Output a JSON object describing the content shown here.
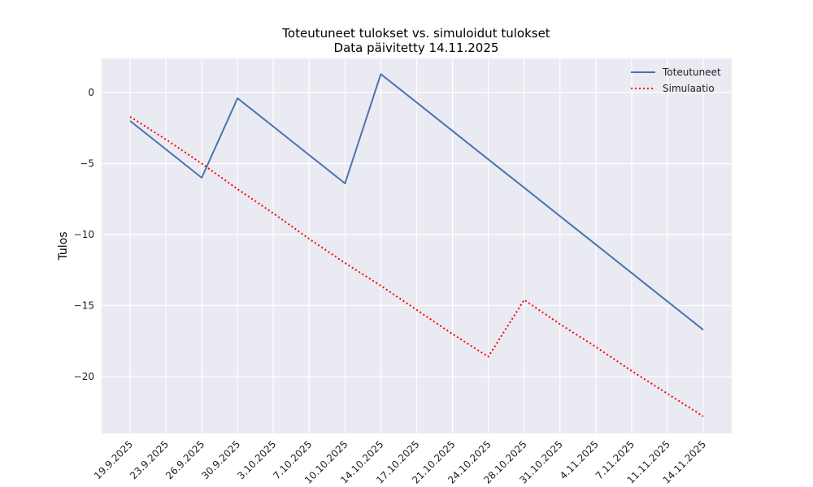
{
  "chart_data": {
    "type": "line",
    "title": "Toteutuneet tulokset vs. simuloidut tulokset",
    "subtitle": "Data päivitetty 14.11.2025",
    "xlabel": "",
    "ylabel": "Tulos",
    "categories": [
      "19.9.2025",
      "23.9.2025",
      "26.9.2025",
      "30.9.2025",
      "3.10.2025",
      "7.10.2025",
      "10.10.2025",
      "14.10.2025",
      "17.10.2025",
      "21.10.2025",
      "24.10.2025",
      "28.10.2025",
      "31.10.2025",
      "4.11.2025",
      "7.11.2025",
      "11.11.2025",
      "14.11.2025"
    ],
    "ylim": [
      -24,
      2.4
    ],
    "yticks": [
      0,
      -5,
      -10,
      -15,
      -20
    ],
    "grid": true,
    "legend_position": "top-right",
    "series": [
      {
        "name": "Toteutuneet",
        "color": "#4c72b0",
        "style": "solid",
        "values": [
          -2.0,
          -4.0,
          -6.0,
          -0.4,
          -2.4,
          -4.4,
          -6.4,
          1.3,
          -0.7,
          -2.7,
          -4.7,
          -6.7,
          -8.7,
          -10.7,
          -12.7,
          -14.7,
          -16.7
        ]
      },
      {
        "name": "Simulaatio",
        "color": "#ff0000",
        "style": "dotted",
        "values": [
          -1.7,
          -3.3,
          -5.0,
          -6.8,
          -8.5,
          -10.3,
          -12.0,
          -13.6,
          -15.3,
          -17.0,
          -18.6,
          -14.6,
          -16.3,
          -17.9,
          -19.6,
          -21.2,
          -22.8
        ]
      }
    ]
  }
}
